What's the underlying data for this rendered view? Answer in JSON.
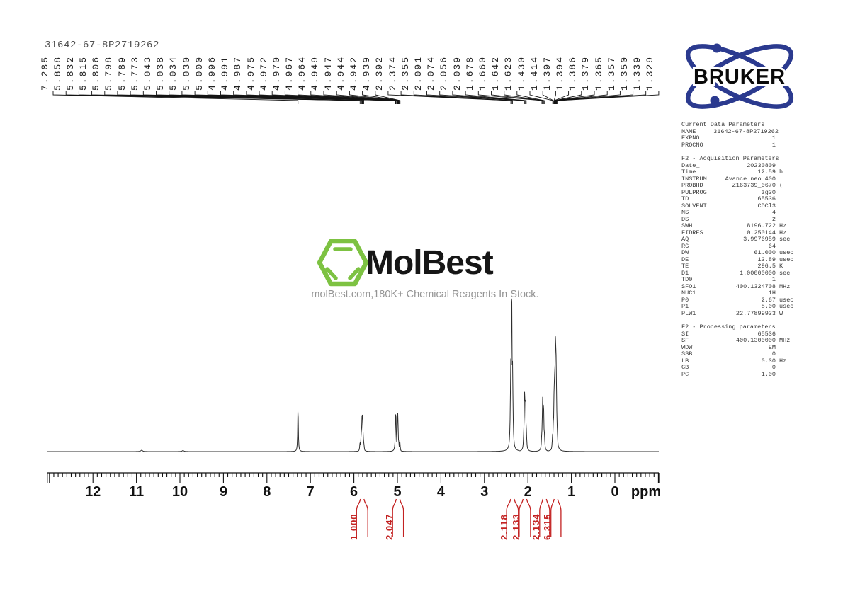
{
  "header": {
    "sample_id": "31642-67-8P2719262"
  },
  "branding": {
    "bruker": {
      "label": "BRUKER"
    },
    "molbest": {
      "name": "MolBest",
      "tagline": "molBest.com,180K+ Chemical Reagents In Stock."
    }
  },
  "colors": {
    "integral_red": "#c32222",
    "molbest_green": "#7dc242",
    "bruker_blue": "#2b3a8f"
  },
  "chart_data": {
    "type": "line",
    "title": "1H NMR spectrum 31642-67-8P2719262",
    "xlabel": "ppm",
    "x_axis": {
      "unit_label": "ppm",
      "ticks": [
        12,
        11,
        10,
        9,
        8,
        7,
        6,
        5,
        4,
        3,
        2,
        1,
        0
      ],
      "range_ppm": [
        13.05,
        -1.01
      ],
      "minor_tick_ppm": 0.1,
      "direction": "reversed"
    },
    "peak_labels": [
      "7.285",
      "5.858",
      "5.832",
      "5.815",
      "5.806",
      "5.798",
      "5.789",
      "5.773",
      "5.043",
      "5.038",
      "5.034",
      "5.030",
      "5.000",
      "4.996",
      "4.991",
      "4.987",
      "4.975",
      "4.972",
      "4.970",
      "4.967",
      "4.964",
      "4.949",
      "4.947",
      "4.944",
      "4.942",
      "4.939",
      "2.392",
      "2.374",
      "2.355",
      "2.091",
      "2.074",
      "2.056",
      "2.039",
      "1.678",
      "1.660",
      "1.642",
      "1.623",
      "1.430",
      "1.414",
      "1.397",
      "1.394",
      "1.386",
      "1.379",
      "1.365",
      "1.357",
      "1.350",
      "1.339",
      "1.329"
    ],
    "peaks": [
      [
        7.285,
        66,
        0.5
      ],
      [
        5.858,
        14,
        0.65
      ],
      [
        5.832,
        28,
        0.65
      ],
      [
        5.815,
        50,
        0.65
      ],
      [
        5.806,
        52,
        0.65
      ],
      [
        5.798,
        45,
        0.65
      ],
      [
        5.789,
        27,
        0.65
      ],
      [
        5.773,
        13,
        0.65
      ],
      [
        5.043,
        25,
        0.65
      ],
      [
        5.038,
        56,
        0.65
      ],
      [
        5.034,
        50,
        0.65
      ],
      [
        5.03,
        22,
        0.65
      ],
      [
        5.0,
        30,
        0.65
      ],
      [
        4.996,
        61,
        0.65
      ],
      [
        4.991,
        54,
        0.65
      ],
      [
        4.987,
        25,
        0.65
      ],
      [
        4.975,
        13,
        0.55
      ],
      [
        4.972,
        15,
        0.55
      ],
      [
        4.97,
        15,
        0.55
      ],
      [
        4.967,
        12,
        0.55
      ],
      [
        4.964,
        9,
        0.55
      ],
      [
        4.949,
        13,
        0.55
      ],
      [
        4.947,
        15,
        0.55
      ],
      [
        4.944,
        14,
        0.55
      ],
      [
        4.942,
        12,
        0.55
      ],
      [
        4.939,
        9,
        0.55
      ],
      [
        2.392,
        135,
        0.8
      ],
      [
        2.374,
        235,
        0.8
      ],
      [
        2.355,
        130,
        0.8
      ],
      [
        2.091,
        36,
        0.75
      ],
      [
        2.074,
        88,
        0.75
      ],
      [
        2.056,
        80,
        0.75
      ],
      [
        2.039,
        34,
        0.75
      ],
      [
        1.678,
        30,
        0.75
      ],
      [
        1.66,
        78,
        0.75
      ],
      [
        1.642,
        70,
        0.75
      ],
      [
        1.623,
        28,
        0.75
      ],
      [
        1.43,
        26,
        0.8
      ],
      [
        1.414,
        44,
        0.8
      ],
      [
        1.397,
        88,
        0.8
      ],
      [
        1.394,
        100,
        0.8
      ],
      [
        1.386,
        114,
        0.8
      ],
      [
        1.379,
        128,
        0.8
      ],
      [
        1.365,
        172,
        0.8
      ],
      [
        1.357,
        158,
        0.8
      ],
      [
        1.35,
        118,
        0.8
      ],
      [
        1.339,
        62,
        0.8
      ],
      [
        1.329,
        38,
        0.8
      ],
      [
        10.88,
        2,
        1.5
      ],
      [
        9.93,
        1.5,
        1.5
      ]
    ],
    "integrals": [
      {
        "label": "1.000",
        "from_ppm": 5.94,
        "to_ppm": 5.68
      },
      {
        "label": "2.047",
        "from_ppm": 5.11,
        "to_ppm": 4.86
      },
      {
        "label": "2.118",
        "from_ppm": 2.49,
        "to_ppm": 2.22
      },
      {
        "label": "2.133",
        "from_ppm": 2.2,
        "to_ppm": 1.94
      },
      {
        "label": "2.134",
        "from_ppm": 1.73,
        "to_ppm": 1.5
      },
      {
        "label": "6.315",
        "from_ppm": 1.47,
        "to_ppm": 1.24
      }
    ]
  },
  "parameters": {
    "sections": [
      {
        "title": "Current Data Parameters",
        "rows": [
          [
            "NAME",
            "31642-67-8P2719262",
            ""
          ],
          [
            "EXPNO",
            "1",
            ""
          ],
          [
            "PROCNO",
            "1",
            ""
          ]
        ]
      },
      {
        "title": "F2 - Acquisition Parameters",
        "rows": [
          [
            "Date_",
            "20230809",
            ""
          ],
          [
            "Time",
            "12.59",
            "h"
          ],
          [
            "INSTRUM",
            "Avance neo 400",
            ""
          ],
          [
            "PROBHD",
            "Z163739_0670",
            "("
          ],
          [
            "PULPROG",
            "zg30",
            ""
          ],
          [
            "TD",
            "65536",
            ""
          ],
          [
            "SOLVENT",
            "CDCl3",
            ""
          ],
          [
            "NS",
            "4",
            ""
          ],
          [
            "DS",
            "2",
            ""
          ],
          [
            "SWH",
            "8196.722",
            "Hz"
          ],
          [
            "FIDRES",
            "0.250144",
            "Hz"
          ],
          [
            "AQ",
            "3.9976959",
            "sec"
          ],
          [
            "RG",
            "64",
            ""
          ],
          [
            "DW",
            "61.000",
            "usec"
          ],
          [
            "DE",
            "13.89",
            "usec"
          ],
          [
            "TE",
            "296.5",
            "K"
          ],
          [
            "D1",
            "1.00000000",
            "sec"
          ],
          [
            "TD0",
            "1",
            ""
          ],
          [
            "SFO1",
            "400.1324708",
            "MHz"
          ],
          [
            "NUC1",
            "1H",
            ""
          ],
          [
            "P0",
            "2.67",
            "usec"
          ],
          [
            "P1",
            "8.00",
            "usec"
          ],
          [
            "PLW1",
            "22.77899933",
            "W"
          ]
        ]
      },
      {
        "title": "F2 - Processing parameters",
        "rows": [
          [
            "SI",
            "65536",
            ""
          ],
          [
            "SF",
            "400.1300000",
            "MHz"
          ],
          [
            "WDW",
            "EM",
            ""
          ],
          [
            "SSB",
            "0",
            ""
          ],
          [
            "LB",
            "0.30",
            "Hz"
          ],
          [
            "GB",
            "0",
            ""
          ],
          [
            "PC",
            "1.00",
            ""
          ]
        ]
      }
    ]
  }
}
